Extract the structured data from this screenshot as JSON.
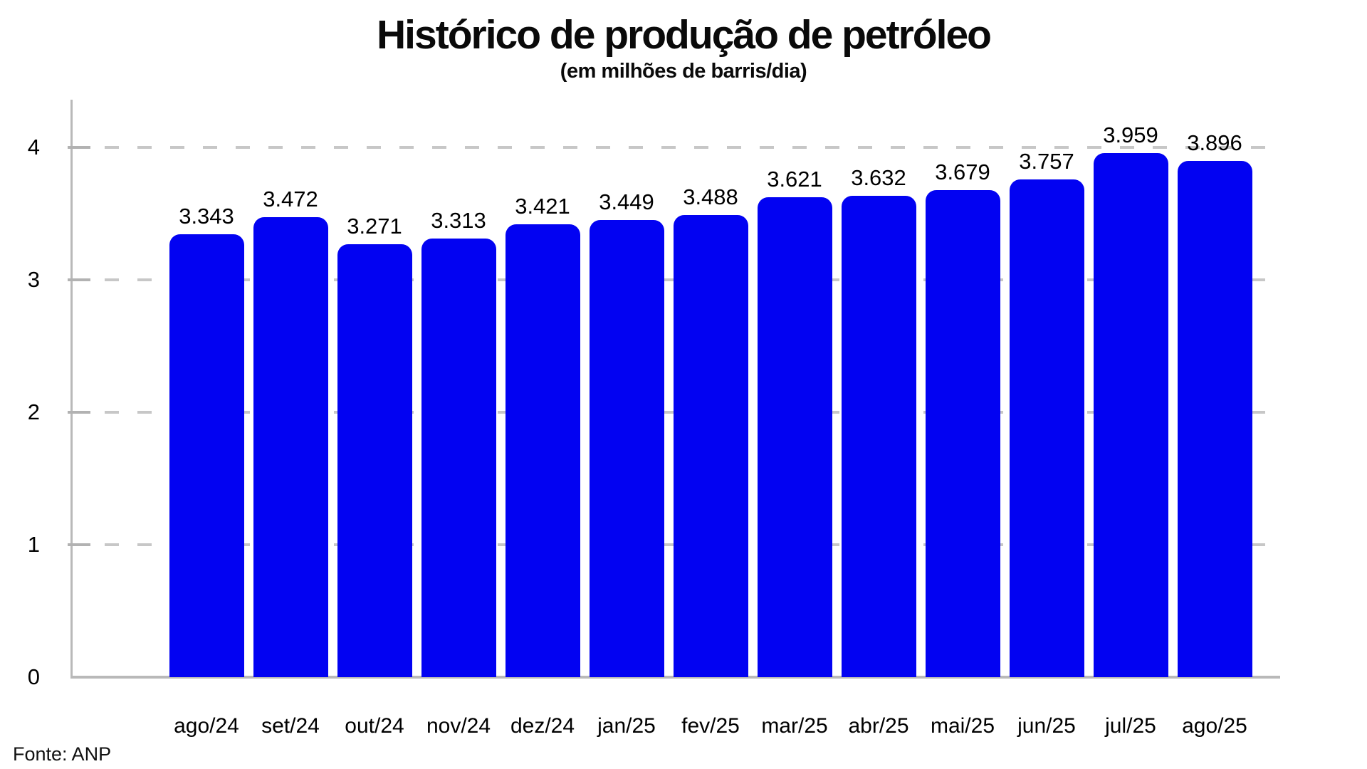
{
  "title": "Histórico de produção de petróleo",
  "subtitle": "(em milhões de barris/dia)",
  "source_note": "Fonte: ANP",
  "chart_data": {
    "type": "bar",
    "title": "Histórico de produção de petróleo",
    "subtitle": "(em milhões de barris/dia)",
    "xlabel": "",
    "ylabel": "",
    "categories": [
      "ago/24",
      "set/24",
      "out/24",
      "nov/24",
      "dez/24",
      "jan/25",
      "fev/25",
      "mar/25",
      "abr/25",
      "mai/25",
      "jun/25",
      "jul/25",
      "ago/25"
    ],
    "values": [
      3.343,
      3.472,
      3.271,
      3.313,
      3.421,
      3.449,
      3.488,
      3.621,
      3.632,
      3.679,
      3.757,
      3.959,
      3.896
    ],
    "value_labels": [
      "3.343",
      "3.472",
      "3.271",
      "3.313",
      "3.421",
      "3.449",
      "3.488",
      "3.621",
      "3.632",
      "3.679",
      "3.757",
      "3.959",
      "3.896"
    ],
    "yticks": [
      0,
      1,
      2,
      3,
      4
    ],
    "ylim": [
      0,
      4.36
    ],
    "grid": "horizontal-dashed",
    "legend": "none",
    "bar_color": "#0202f2",
    "axis_color": "#b9b9b9",
    "grid_color": "#c7c7c7",
    "source": "Fonte: ANP"
  }
}
